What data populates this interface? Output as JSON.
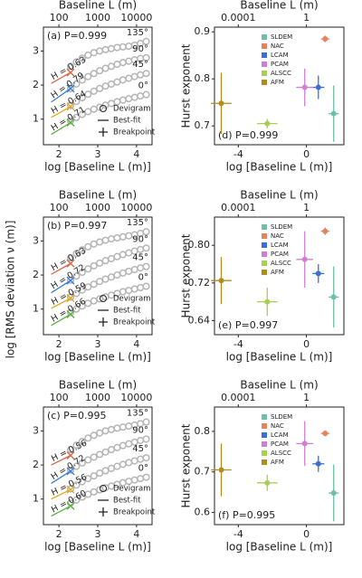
{
  "chart_data": [
    {
      "type": "deviogram",
      "panel_label": "(a) P=0.999",
      "xlabel": "log [Baseline L (m)]",
      "x2label": "Baseline L (m)",
      "ylabel": "log [RMS deviation ν (m)]",
      "xlim": [
        1.6,
        4.4
      ],
      "xticks": [
        2,
        3,
        4
      ],
      "x2lim": [
        40,
        25000
      ],
      "x2ticks": [
        100,
        1000,
        10000
      ],
      "x2log": true,
      "ylim": [
        0.25,
        3.7
      ],
      "yticks": [
        1,
        2,
        3
      ],
      "legend": [
        "Devigram",
        "Best-fit",
        "Breakpoint"
      ],
      "dev_x": [
        2.3,
        2.45,
        2.6,
        2.75,
        2.9,
        3.05,
        3.2,
        3.35,
        3.5,
        3.65,
        3.8,
        3.95,
        4.1,
        4.25
      ],
      "deviograms": [
        {
          "label": "135°",
          "color": "#d9674a",
          "y": [
            2.55,
            2.68,
            2.79,
            2.88,
            2.95,
            3.0,
            3.04,
            3.07,
            3.1,
            3.12,
            3.14,
            3.17,
            3.22,
            3.28
          ]
        },
        {
          "label": "90°",
          "color": "#3a7fd5",
          "y": [
            1.9,
            2.03,
            2.15,
            2.25,
            2.34,
            2.42,
            2.49,
            2.55,
            2.61,
            2.66,
            2.7,
            2.74,
            2.78,
            2.8
          ]
        },
        {
          "label": "45°",
          "color": "#e0a820",
          "y": [
            1.4,
            1.52,
            1.63,
            1.73,
            1.82,
            1.9,
            1.97,
            2.03,
            2.09,
            2.15,
            2.2,
            2.25,
            2.3,
            2.34
          ]
        },
        {
          "label": "0°",
          "color": "#5cb040",
          "y": [
            0.95,
            1.05,
            1.14,
            1.22,
            1.29,
            1.35,
            1.41,
            1.46,
            1.51,
            1.56,
            1.6,
            1.64,
            1.68,
            1.72
          ]
        }
      ],
      "fits": [
        {
          "label": "H = 0.63",
          "color": "#d9674a",
          "x": [
            1.8,
            2.3
          ],
          "y": [
            2.05,
            2.37
          ]
        },
        {
          "label": "H = 0.79",
          "color": "#3a7fd5",
          "x": [
            1.8,
            2.3
          ],
          "y": [
            1.5,
            1.9
          ]
        },
        {
          "label": "H = 0.64",
          "color": "#e0a820",
          "x": [
            1.8,
            2.3
          ],
          "y": [
            1.05,
            1.37
          ]
        },
        {
          "label": "H = 0.71",
          "color": "#5cb040",
          "x": [
            1.8,
            2.3
          ],
          "y": [
            0.55,
            0.9
          ]
        }
      ]
    },
    {
      "type": "deviogram",
      "panel_label": "(b) P=0.997",
      "xlabel": "log [Baseline L (m)]",
      "x2label": "Baseline L (m)",
      "xlim": [
        1.6,
        4.4
      ],
      "xticks": [
        2,
        3,
        4
      ],
      "x2lim": [
        40,
        25000
      ],
      "x2ticks": [
        100,
        1000,
        10000
      ],
      "x2log": true,
      "ylim": [
        0.25,
        3.7
      ],
      "yticks": [
        1,
        2,
        3
      ],
      "legend": [
        "Devigram",
        "Best-fit",
        "Breakpoint"
      ],
      "dev_x": [
        2.3,
        2.45,
        2.6,
        2.75,
        2.9,
        3.05,
        3.2,
        3.35,
        3.5,
        3.65,
        3.8,
        3.95,
        4.1,
        4.25
      ],
      "deviograms": [
        {
          "label": "135°",
          "color": "#d9674a",
          "y": [
            2.5,
            2.63,
            2.74,
            2.83,
            2.91,
            2.97,
            3.02,
            3.06,
            3.09,
            3.12,
            3.15,
            3.18,
            3.22,
            3.27
          ]
        },
        {
          "label": "90°",
          "color": "#3a7fd5",
          "y": [
            1.85,
            1.97,
            2.08,
            2.18,
            2.27,
            2.35,
            2.42,
            2.48,
            2.54,
            2.6,
            2.65,
            2.7,
            2.75,
            2.79
          ]
        },
        {
          "label": "45°",
          "color": "#e0a820",
          "y": [
            1.35,
            1.46,
            1.56,
            1.65,
            1.73,
            1.81,
            1.88,
            1.94,
            2.0,
            2.06,
            2.11,
            2.16,
            2.21,
            2.25
          ]
        },
        {
          "label": "0°",
          "color": "#5cb040",
          "y": [
            0.9,
            1.0,
            1.09,
            1.17,
            1.24,
            1.3,
            1.36,
            1.41,
            1.46,
            1.51,
            1.55,
            1.59,
            1.63,
            1.67
          ]
        }
      ],
      "fits": [
        {
          "label": "H = 0.63",
          "color": "#d9674a",
          "x": [
            1.8,
            2.3
          ],
          "y": [
            2.02,
            2.34
          ]
        },
        {
          "label": "H = 0.72",
          "color": "#3a7fd5",
          "x": [
            1.8,
            2.3
          ],
          "y": [
            1.48,
            1.84
          ]
        },
        {
          "label": "H = 0.59",
          "color": "#e0a820",
          "x": [
            1.8,
            2.3
          ],
          "y": [
            1.02,
            1.32
          ]
        },
        {
          "label": "H = 0.66",
          "color": "#5cb040",
          "x": [
            1.8,
            2.3
          ],
          "y": [
            0.52,
            0.85
          ]
        }
      ]
    },
    {
      "type": "deviogram",
      "panel_label": "(c) P=0.995",
      "xlabel": "log [Baseline L (m)]",
      "x2label": "Baseline L (m)",
      "xlim": [
        1.6,
        4.4
      ],
      "xticks": [
        2,
        3,
        4
      ],
      "x2lim": [
        40,
        25000
      ],
      "x2ticks": [
        100,
        1000,
        10000
      ],
      "x2log": true,
      "ylim": [
        0.25,
        3.7
      ],
      "yticks": [
        1,
        2,
        3
      ],
      "legend": [
        "Devigram",
        "Best-fit",
        "Breakpoint"
      ],
      "dev_x": [
        2.3,
        2.45,
        2.6,
        2.75,
        2.9,
        3.05,
        3.2,
        3.35,
        3.5,
        3.65,
        3.8,
        3.95,
        4.1,
        4.25
      ],
      "deviograms": [
        {
          "label": "135°",
          "color": "#d9674a",
          "y": [
            2.45,
            2.58,
            2.69,
            2.79,
            2.87,
            2.94,
            3.0,
            3.04,
            3.08,
            3.11,
            3.14,
            3.17,
            3.21,
            3.26
          ]
        },
        {
          "label": "90°",
          "color": "#3a7fd5",
          "y": [
            1.85,
            1.96,
            2.06,
            2.15,
            2.23,
            2.31,
            2.38,
            2.45,
            2.51,
            2.57,
            2.62,
            2.67,
            2.72,
            2.76
          ]
        },
        {
          "label": "45°",
          "color": "#e0a820",
          "y": [
            1.3,
            1.41,
            1.51,
            1.6,
            1.68,
            1.76,
            1.83,
            1.9,
            1.96,
            2.02,
            2.07,
            2.12,
            2.17,
            2.21
          ]
        },
        {
          "label": "0°",
          "color": "#5cb040",
          "y": [
            0.88,
            0.97,
            1.06,
            1.14,
            1.21,
            1.27,
            1.33,
            1.38,
            1.43,
            1.48,
            1.52,
            1.56,
            1.6,
            1.64
          ]
        }
      ],
      "fits": [
        {
          "label": "H = 0.56",
          "color": "#d9674a",
          "x": [
            1.8,
            2.3
          ],
          "y": [
            2.0,
            2.28
          ]
        },
        {
          "label": "H = 0.72",
          "color": "#3a7fd5",
          "x": [
            1.8,
            2.3
          ],
          "y": [
            1.46,
            1.82
          ]
        },
        {
          "label": "H = 0.56",
          "color": "#e0a820",
          "x": [
            1.8,
            2.3
          ],
          "y": [
            1.0,
            1.28
          ]
        },
        {
          "label": "H = 0.60",
          "color": "#5cb040",
          "x": [
            1.8,
            2.3
          ],
          "y": [
            0.5,
            0.8
          ]
        }
      ]
    },
    {
      "type": "errorbar",
      "panel_label": "(d) P=0.999",
      "xlabel": "log [Baseline L (m)]",
      "x2label": "Baseline L (m)",
      "ylabel": "Hurst exponent",
      "xlim": [
        -5.4,
        2.2
      ],
      "xticks": [
        -4,
        0
      ],
      "x2lim": [
        4e-06,
        158
      ],
      "x2ticks": [
        0.0001,
        1
      ],
      "x2log": true,
      "ylim": [
        0.66,
        0.91
      ],
      "yticks": [
        0.7,
        0.8,
        0.9
      ],
      "series": [
        {
          "name": "SLDEM",
          "color": "#6dbfa8",
          "x": 1.6,
          "value": 0.726,
          "xerr": 0.3,
          "yerr": 0.06
        },
        {
          "name": "NAC",
          "color": "#e8825a",
          "x": 1.1,
          "value": 0.885,
          "xerr": 0.25,
          "yerr": 0.007
        },
        {
          "name": "LCAM",
          "color": "#3a6fd8",
          "x": 0.7,
          "value": 0.782,
          "xerr": 0.35,
          "yerr": 0.025
        },
        {
          "name": "PCAM",
          "color": "#cf7fd0",
          "x": -0.1,
          "value": 0.782,
          "xerr": 0.5,
          "yerr": 0.04
        },
        {
          "name": "ALSCC",
          "color": "#a9cf52",
          "x": -2.3,
          "value": 0.705,
          "xerr": 0.6,
          "yerr": 0.01
        },
        {
          "name": "AFM",
          "color": "#b08c1e",
          "x": -5.0,
          "value": 0.748,
          "xerr": 0.6,
          "yerr": 0.065
        }
      ]
    },
    {
      "type": "errorbar",
      "panel_label": "(e) P=0.997",
      "xlabel": "log [Baseline L (m)]",
      "x2label": "Baseline L (m)",
      "ylabel": "Hurst exponent",
      "xlim": [
        -5.4,
        2.2
      ],
      "xticks": [
        -4,
        0
      ],
      "x2lim": [
        4e-06,
        158
      ],
      "x2ticks": [
        0.0001,
        1
      ],
      "x2log": true,
      "ylim": [
        0.61,
        0.86
      ],
      "yticks": [
        0.64,
        0.72,
        {
          "value": 0.8,
          "label": "0.80"
        }
      ],
      "series": [
        {
          "name": "SLDEM",
          "color": "#6dbfa8",
          "x": 1.6,
          "value": 0.69,
          "xerr": 0.3,
          "yerr": 0.065
        },
        {
          "name": "NAC",
          "color": "#e8825a",
          "x": 1.1,
          "value": 0.83,
          "xerr": 0.25,
          "yerr": 0.008
        },
        {
          "name": "LCAM",
          "color": "#3a6fd8",
          "x": 0.7,
          "value": 0.74,
          "xerr": 0.35,
          "yerr": 0.02
        },
        {
          "name": "PCAM",
          "color": "#cf7fd0",
          "x": -0.1,
          "value": 0.77,
          "xerr": 0.5,
          "yerr": 0.06
        },
        {
          "name": "ALSCC",
          "color": "#a9cf52",
          "x": -2.3,
          "value": 0.68,
          "xerr": 0.6,
          "yerr": 0.03
        },
        {
          "name": "AFM",
          "color": "#b08c1e",
          "x": -5.0,
          "value": 0.725,
          "xerr": 0.6,
          "yerr": 0.05
        }
      ]
    },
    {
      "type": "errorbar",
      "panel_label": "(f) P=0.995",
      "xlabel": "log [Baseline L (m)]",
      "x2label": "Baseline L (m)",
      "ylabel": "Hurst exponent",
      "xlim": [
        -5.4,
        2.2
      ],
      "xticks": [
        -4,
        0
      ],
      "x2lim": [
        4e-06,
        158
      ],
      "x2ticks": [
        0.0001,
        1
      ],
      "x2log": true,
      "ylim": [
        0.57,
        0.86
      ],
      "yticks": [
        0.6,
        0.7,
        0.8
      ],
      "series": [
        {
          "name": "SLDEM",
          "color": "#6dbfa8",
          "x": 1.6,
          "value": 0.648,
          "xerr": 0.3,
          "yerr": 0.07
        },
        {
          "name": "NAC",
          "color": "#e8825a",
          "x": 1.1,
          "value": 0.795,
          "xerr": 0.25,
          "yerr": 0.007
        },
        {
          "name": "LCAM",
          "color": "#3a6fd8",
          "x": 0.7,
          "value": 0.72,
          "xerr": 0.35,
          "yerr": 0.02
        },
        {
          "name": "PCAM",
          "color": "#cf7fd0",
          "x": -0.1,
          "value": 0.77,
          "xerr": 0.5,
          "yerr": 0.055
        },
        {
          "name": "ALSCC",
          "color": "#a9cf52",
          "x": -2.3,
          "value": 0.673,
          "xerr": 0.6,
          "yerr": 0.02
        },
        {
          "name": "AFM",
          "color": "#b08c1e",
          "x": -5.0,
          "value": 0.705,
          "xerr": 0.6,
          "yerr": 0.065
        }
      ]
    }
  ]
}
